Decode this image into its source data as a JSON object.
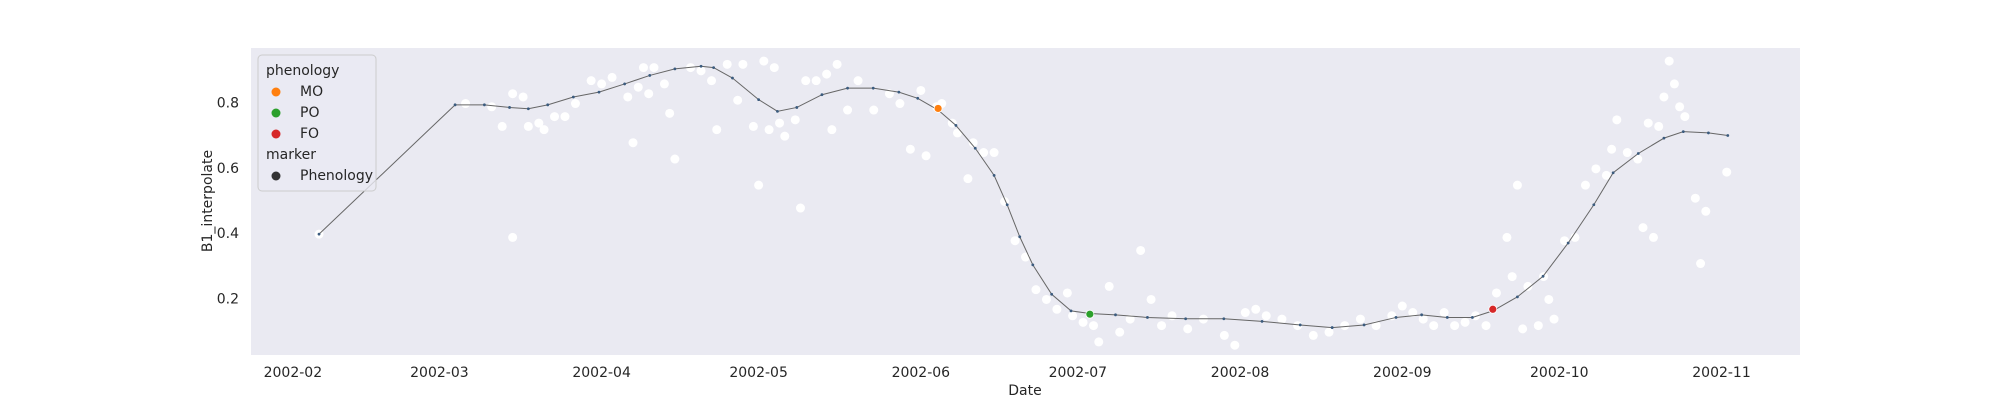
{
  "chart_data": {
    "type": "scatter",
    "xlabel": "Date",
    "ylabel": "B1_interpolate",
    "xlim": [
      24,
      320
    ],
    "ylim": [
      0.03,
      0.97
    ],
    "xticks": [
      {
        "value": 32,
        "label": "2002-02"
      },
      {
        "value": 60,
        "label": "2002-03"
      },
      {
        "value": 91,
        "label": "2002-04"
      },
      {
        "value": 121,
        "label": "2002-05"
      },
      {
        "value": 152,
        "label": "2002-06"
      },
      {
        "value": 182,
        "label": "2002-07"
      },
      {
        "value": 213,
        "label": "2002-08"
      },
      {
        "value": 244,
        "label": "2002-09"
      },
      {
        "value": 274,
        "label": "2002-10"
      },
      {
        "value": 305,
        "label": "2002-11"
      }
    ],
    "yticks": [
      0.2,
      0.4,
      0.6,
      0.8
    ],
    "grid": true,
    "legend": {
      "loc": "upper left",
      "titles": [
        "phenology",
        "marker"
      ],
      "marker_item": "Phenology",
      "marker_color": "#333333"
    },
    "series": [
      {
        "kind": "scatter",
        "color": "#ffffff",
        "x": [
          37,
          65,
          70,
          72,
          74,
          74,
          76,
          77,
          79,
          80,
          82,
          84,
          86,
          89,
          91,
          93,
          96,
          97,
          98,
          99,
          100,
          101,
          103,
          104,
          105,
          108,
          110,
          112,
          113,
          115,
          117,
          118,
          120,
          121,
          122,
          123,
          124,
          125,
          126,
          128,
          129,
          130,
          132,
          134,
          135,
          136,
          138,
          140,
          143,
          146,
          148,
          150,
          152,
          153,
          155,
          156,
          158,
          159,
          161,
          162,
          164,
          166,
          168,
          170,
          172,
          174,
          176,
          178,
          180,
          181,
          183,
          185,
          186,
          188,
          190,
          192,
          194,
          196,
          198,
          200,
          203,
          206,
          210,
          212,
          214,
          216,
          218,
          221,
          224,
          227,
          230,
          233,
          236,
          239,
          242,
          244,
          246,
          248,
          250,
          252,
          254,
          256,
          258,
          260,
          262,
          264,
          265,
          266,
          267,
          268,
          270,
          271,
          272,
          273,
          275,
          277,
          279,
          281,
          283,
          284,
          285,
          287,
          289,
          290,
          291,
          292,
          293,
          294,
          295,
          296,
          297,
          298,
          300,
          301,
          302,
          306
        ],
        "values": [
          0.4,
          0.8,
          0.79,
          0.73,
          0.83,
          0.39,
          0.82,
          0.73,
          0.74,
          0.72,
          0.76,
          0.76,
          0.8,
          0.87,
          0.86,
          0.88,
          0.82,
          0.68,
          0.85,
          0.91,
          0.83,
          0.91,
          0.86,
          0.77,
          0.63,
          0.91,
          0.9,
          0.87,
          0.72,
          0.92,
          0.81,
          0.92,
          0.73,
          0.55,
          0.93,
          0.72,
          0.91,
          0.74,
          0.7,
          0.75,
          0.48,
          0.87,
          0.87,
          0.89,
          0.72,
          0.92,
          0.78,
          0.87,
          0.78,
          0.83,
          0.8,
          0.66,
          0.84,
          0.64,
          0.79,
          0.8,
          0.74,
          0.71,
          0.57,
          0.68,
          0.65,
          0.65,
          0.5,
          0.38,
          0.33,
          0.23,
          0.2,
          0.17,
          0.22,
          0.15,
          0.13,
          0.12,
          0.07,
          0.24,
          0.1,
          0.14,
          0.35,
          0.2,
          0.12,
          0.15,
          0.11,
          0.14,
          0.09,
          0.06,
          0.16,
          0.17,
          0.15,
          0.14,
          0.12,
          0.09,
          0.1,
          0.12,
          0.14,
          0.12,
          0.15,
          0.18,
          0.16,
          0.14,
          0.12,
          0.16,
          0.12,
          0.13,
          0.15,
          0.12,
          0.22,
          0.39,
          0.27,
          0.55,
          0.11,
          0.24,
          0.12,
          0.27,
          0.2,
          0.14,
          0.38,
          0.39,
          0.55,
          0.6,
          0.58,
          0.66,
          0.75,
          0.65,
          0.63,
          0.42,
          0.74,
          0.39,
          0.73,
          0.82,
          0.93,
          0.86,
          0.79,
          0.76,
          0.51,
          0.31,
          0.47,
          0.59
        ]
      },
      {
        "kind": "line",
        "color": "#3b5b7e",
        "x": [
          37,
          63,
          68.6,
          73.4,
          77,
          80.7,
          85.6,
          90.5,
          95.4,
          100.2,
          105,
          110,
          112.4,
          116,
          121,
          124.6,
          128.3,
          133.1,
          138,
          142.9,
          147.8,
          151.4,
          155.3,
          158.7,
          162.4,
          166,
          168.5,
          170.9,
          173.4,
          177,
          180.7,
          184.3,
          189.2,
          195.3,
          202.6,
          209.9,
          217.2,
          224.5,
          230.6,
          236.7,
          242.8,
          247.7,
          252.6,
          257.4,
          261.3,
          266,
          270.9,
          275.7,
          280.6,
          284.3,
          289.1,
          294,
          297.7,
          302.5,
          306.2
        ],
        "values": [
          0.4,
          0.796,
          0.796,
          0.788,
          0.784,
          0.796,
          0.82,
          0.835,
          0.86,
          0.886,
          0.906,
          0.914,
          0.91,
          0.878,
          0.812,
          0.776,
          0.788,
          0.827,
          0.847,
          0.847,
          0.835,
          0.816,
          0.78,
          0.733,
          0.663,
          0.58,
          0.49,
          0.392,
          0.306,
          0.216,
          0.165,
          0.157,
          0.153,
          0.145,
          0.141,
          0.141,
          0.133,
          0.122,
          0.114,
          0.122,
          0.145,
          0.153,
          0.145,
          0.145,
          0.165,
          0.208,
          0.271,
          0.373,
          0.49,
          0.588,
          0.647,
          0.694,
          0.714,
          0.71,
          0.702
        ]
      },
      {
        "name": "MO",
        "kind": "point",
        "color": "#ff7f0e",
        "x": [
          155.3
        ],
        "values": [
          0.785
        ]
      },
      {
        "name": "PO",
        "kind": "point",
        "color": "#2ca02c",
        "x": [
          184.3
        ],
        "values": [
          0.155
        ]
      },
      {
        "name": "FO",
        "kind": "point",
        "color": "#d62728",
        "x": [
          261.3
        ],
        "values": [
          0.17
        ]
      }
    ]
  }
}
